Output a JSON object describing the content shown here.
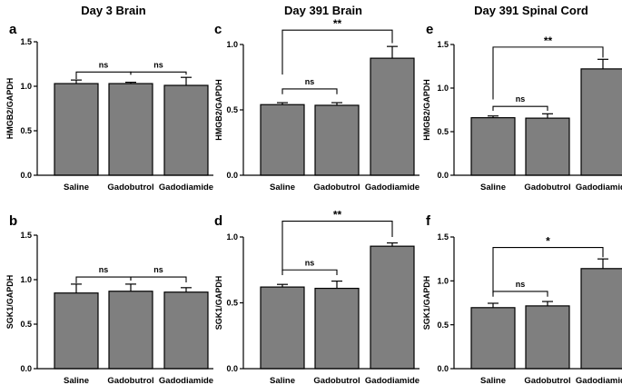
{
  "figure": {
    "column_titles": [
      "Day 3 Brain",
      "Day 391 Brain",
      "Day 391 Spinal Cord"
    ]
  },
  "chart_data": [
    {
      "panel": "a",
      "type": "bar",
      "ylabel": "HMGB2/GAPDH",
      "categories": [
        "Saline",
        "Gadobutrol",
        "Gadodiamide"
      ],
      "values": [
        1.03,
        1.03,
        1.01
      ],
      "errors": [
        0.04,
        0.015,
        0.09
      ],
      "ylim": [
        0,
        1.5
      ],
      "yticks": [
        0.0,
        0.5,
        1.0,
        1.5
      ],
      "ytick_labels": [
        "0.0",
        "0.5",
        "1.0",
        "1.5"
      ],
      "bar_color": "#7f7f7f",
      "comparisons": [
        {
          "from": 0,
          "to": 1,
          "label": "ns",
          "y": 1.16,
          "drop": [
            0.08,
            0.03
          ]
        },
        {
          "from": 1,
          "to": 2,
          "label": "ns",
          "y": 1.16,
          "drop": [
            0.03,
            0.03
          ]
        }
      ]
    },
    {
      "panel": "b",
      "type": "bar",
      "ylabel": "SGK1/GAPDH",
      "categories": [
        "Saline",
        "Gadobutrol",
        "Gadodiamide"
      ],
      "values": [
        0.85,
        0.87,
        0.86
      ],
      "errors": [
        0.1,
        0.08,
        0.05
      ],
      "ylim": [
        0,
        1.5
      ],
      "yticks": [
        0.0,
        0.5,
        1.0,
        1.5
      ],
      "ytick_labels": [
        "0.0",
        "0.5",
        "1.0",
        "1.5"
      ],
      "bar_color": "#7f7f7f",
      "comparisons": [
        {
          "from": 0,
          "to": 1,
          "label": "ns",
          "y": 1.03,
          "drop": [
            0.07,
            0.04
          ]
        },
        {
          "from": 1,
          "to": 2,
          "label": "ns",
          "y": 1.03,
          "drop": [
            0.04,
            0.06
          ]
        }
      ]
    },
    {
      "panel": "c",
      "type": "bar",
      "ylabel": "HMGB2/GAPDH",
      "categories": [
        "Saline",
        "Gadobutrol",
        "Gadodiamide"
      ],
      "values": [
        0.54,
        0.535,
        0.895
      ],
      "errors": [
        0.015,
        0.02,
        0.09
      ],
      "ylim": [
        0,
        1.0
      ],
      "yticks": [
        0.0,
        0.5,
        1.0
      ],
      "ytick_labels": [
        "0.0",
        "0.5",
        "1.0"
      ],
      "bar_color": "#7f7f7f",
      "comparisons": [
        {
          "from": 0,
          "to": 1,
          "label": "ns",
          "y": 0.66,
          "drop": [
            0.04,
            0.04
          ]
        },
        {
          "from": 0,
          "to": 2,
          "label": "**",
          "y": 1.11,
          "drop": [
            0.34,
            0.1
          ]
        }
      ]
    },
    {
      "panel": "d",
      "type": "bar",
      "ylabel": "SGK1/GAPDH",
      "categories": [
        "Saline",
        "Gadobutrol",
        "Gadodiamide"
      ],
      "values": [
        0.62,
        0.61,
        0.93
      ],
      "errors": [
        0.02,
        0.055,
        0.025
      ],
      "ylim": [
        0,
        1.0
      ],
      "yticks": [
        0.0,
        0.5,
        1.0
      ],
      "ytick_labels": [
        "0.0",
        "0.5",
        "1.0"
      ],
      "bar_color": "#7f7f7f",
      "comparisons": [
        {
          "from": 0,
          "to": 1,
          "label": "ns",
          "y": 0.75,
          "drop": [
            0.04,
            0.04
          ]
        },
        {
          "from": 0,
          "to": 2,
          "label": "**",
          "y": 1.12,
          "drop": [
            0.38,
            0.12
          ]
        }
      ]
    },
    {
      "panel": "e",
      "type": "bar",
      "ylabel": "HMGB2/GAPDH",
      "categories": [
        "Saline",
        "Gadobutrol",
        "Gadodiamide"
      ],
      "values": [
        0.66,
        0.655,
        1.22
      ],
      "errors": [
        0.02,
        0.05,
        0.11
      ],
      "ylim": [
        0,
        1.5
      ],
      "yticks": [
        0.0,
        0.5,
        1.0,
        1.5
      ],
      "ytick_labels": [
        "0.0",
        "0.5",
        "1.0",
        "1.5"
      ],
      "bar_color": "#7f7f7f",
      "comparisons": [
        {
          "from": 0,
          "to": 1,
          "label": "ns",
          "y": 0.79,
          "drop": [
            0.05,
            0.05
          ]
        },
        {
          "from": 0,
          "to": 2,
          "label": "**",
          "y": 1.47,
          "drop": [
            0.6,
            0.12
          ]
        }
      ]
    },
    {
      "panel": "f",
      "type": "bar",
      "ylabel": "SGK1/GAPDH",
      "categories": [
        "Saline",
        "Gadobutrol",
        "Gadodiamide"
      ],
      "values": [
        0.695,
        0.715,
        1.14
      ],
      "errors": [
        0.05,
        0.05,
        0.11
      ],
      "ylim": [
        0,
        1.5
      ],
      "yticks": [
        0.0,
        0.5,
        1.0,
        1.5
      ],
      "ytick_labels": [
        "0.0",
        "0.5",
        "1.0",
        "1.5"
      ],
      "bar_color": "#7f7f7f",
      "comparisons": [
        {
          "from": 0,
          "to": 1,
          "label": "ns",
          "y": 0.88,
          "drop": [
            0.06,
            0.06
          ]
        },
        {
          "from": 0,
          "to": 2,
          "label": "*",
          "y": 1.38,
          "drop": [
            0.52,
            0.11
          ]
        }
      ]
    }
  ]
}
